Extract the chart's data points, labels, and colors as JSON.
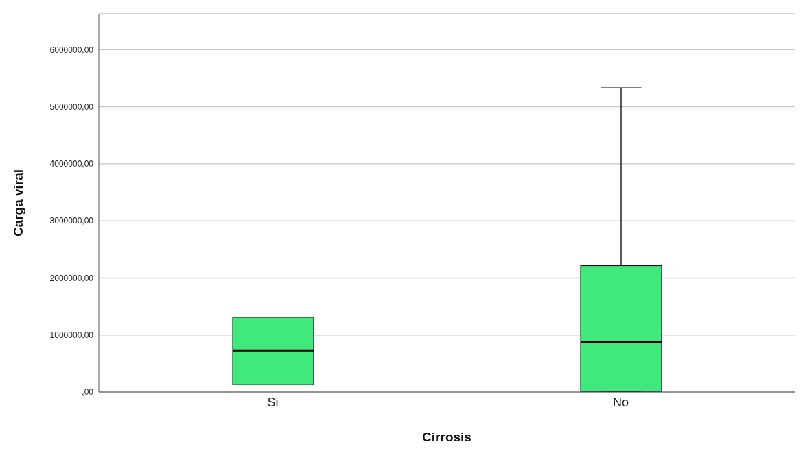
{
  "chart_data": {
    "type": "box",
    "xlabel": "Cirrosis",
    "ylabel": "Carga viral",
    "categories": [
      "Si",
      "No"
    ],
    "color": "#41e87c",
    "boxes": [
      {
        "low": 130000,
        "q1": 130000,
        "median": 730000,
        "q3": 1310000,
        "high": 1310000
      },
      {
        "low": 10000,
        "q1": 10000,
        "median": 880000,
        "q3": 2215000,
        "high": 5330000
      }
    ],
    "ylim": [
      0,
      6630000
    ],
    "yticks": [
      {
        "value": 0,
        "label": ",00"
      },
      {
        "value": 1000000,
        "label": "1000000,00"
      },
      {
        "value": 2000000,
        "label": "2000000,00"
      },
      {
        "value": 3000000,
        "label": "3000000,00"
      },
      {
        "value": 4000000,
        "label": "4000000,00"
      },
      {
        "value": 5000000,
        "label": "5000000,00"
      },
      {
        "value": 6000000,
        "label": "6000000,00"
      }
    ],
    "grid": "y"
  }
}
